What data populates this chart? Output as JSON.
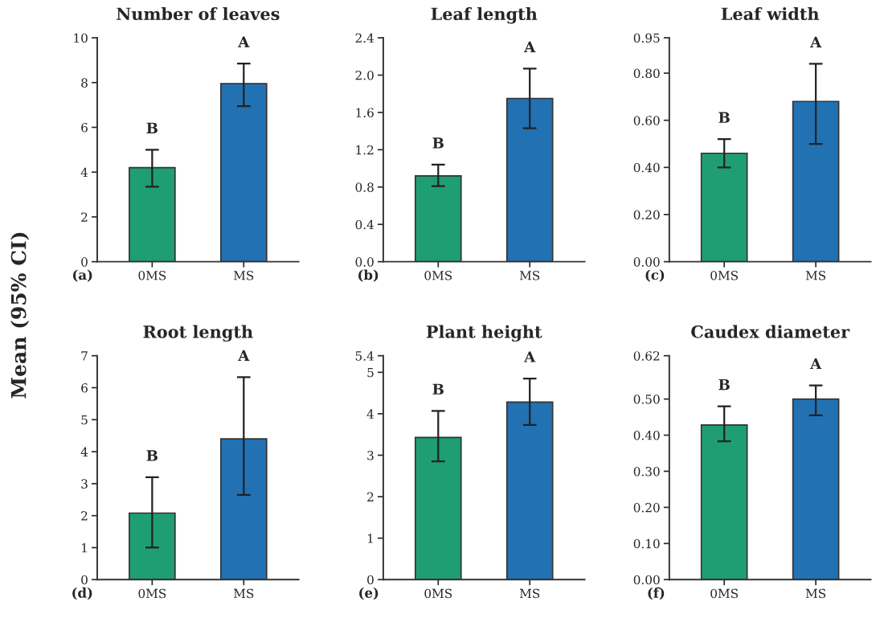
{
  "chart_data": [
    {
      "type": "bar",
      "title": "Number of leaves",
      "ylabel": "Mean (95% CI)",
      "categories": [
        "0MS",
        "MS"
      ],
      "values": [
        4.2,
        7.95
      ],
      "colors": [
        "#1f9e74",
        "#2271b3"
      ],
      "errors": [
        [
          3.35,
          5.0
        ],
        [
          6.95,
          8.85
        ]
      ],
      "ylim": [
        0,
        10
      ],
      "yticks": [
        0,
        2,
        4,
        6,
        8,
        10
      ],
      "annotations": [
        "B",
        "A",
        "(a)"
      ]
    },
    {
      "type": "bar",
      "title": "Leaf length",
      "categories": [
        "0MS",
        "MS"
      ],
      "values": [
        0.92,
        1.75
      ],
      "colors": [
        "#1f9e74",
        "#2271b3"
      ],
      "errors": [
        [
          0.81,
          1.04
        ],
        [
          1.43,
          2.07
        ]
      ],
      "ylim": [
        0,
        2.4
      ],
      "yticks": [
        {
          "value": 0,
          "label": "0.0"
        },
        0.4,
        0.8,
        1.2,
        1.6,
        {
          "value": 2,
          "label": "2.0"
        },
        2.4
      ],
      "annotations": [
        "B",
        "A",
        "(b)"
      ]
    },
    {
      "type": "bar",
      "title": "Leaf width",
      "categories": [
        "0MS",
        "MS"
      ],
      "values": [
        0.46,
        0.68
      ],
      "colors": [
        "#1f9e74",
        "#2271b3"
      ],
      "errors": [
        [
          0.4,
          0.52
        ],
        [
          0.5,
          0.84
        ]
      ],
      "ylim": [
        0,
        0.95
      ],
      "yticks": [
        {
          "value": 0,
          "label": "0.00"
        },
        {
          "value": 0.2,
          "label": "0.20"
        },
        {
          "value": 0.4,
          "label": "0.40"
        },
        {
          "value": 0.6,
          "label": "0.60"
        },
        {
          "value": 0.8,
          "label": "0.80"
        },
        0.95
      ],
      "annotations": [
        "B",
        "A",
        "(c)"
      ]
    },
    {
      "type": "bar",
      "title": "Root length",
      "categories": [
        "0MS",
        "MS"
      ],
      "values": [
        2.08,
        4.4
      ],
      "colors": [
        "#1f9e74",
        "#2271b3"
      ],
      "errors": [
        [
          1.0,
          3.2
        ],
        [
          2.65,
          6.33
        ]
      ],
      "ylim": [
        0,
        7
      ],
      "yticks": [
        0,
        1,
        2,
        3,
        4,
        5,
        6,
        7
      ],
      "annotations": [
        "B",
        "A",
        "(d)"
      ]
    },
    {
      "type": "bar",
      "title": "Plant height",
      "categories": [
        "0MS",
        "MS"
      ],
      "values": [
        3.43,
        4.28
      ],
      "colors": [
        "#1f9e74",
        "#2271b3"
      ],
      "errors": [
        [
          2.85,
          4.07
        ],
        [
          3.73,
          4.85
        ]
      ],
      "ylim": [
        0,
        5.4
      ],
      "yticks": [
        0,
        1,
        2,
        3,
        4,
        5,
        5.4
      ],
      "annotations": [
        "B",
        "A",
        "(e)"
      ]
    },
    {
      "type": "bar",
      "title": "Caudex diameter",
      "categories": [
        "0MS",
        "MS"
      ],
      "values": [
        0.428,
        0.5
      ],
      "colors": [
        "#1f9e74",
        "#2271b3"
      ],
      "errors": [
        [
          0.383,
          0.48
        ],
        [
          0.455,
          0.538
        ]
      ],
      "ylim": [
        0,
        0.62
      ],
      "yticks": [
        {
          "value": 0,
          "label": "0.00"
        },
        {
          "value": 0.1,
          "label": "0.10"
        },
        {
          "value": 0.2,
          "label": "0.20"
        },
        {
          "value": 0.3,
          "label": "0.30"
        },
        {
          "value": 0.4,
          "label": "0.40"
        },
        {
          "value": 0.5,
          "label": "0.50"
        },
        0.62
      ],
      "annotations": [
        "B",
        "A",
        "(f)"
      ]
    }
  ]
}
